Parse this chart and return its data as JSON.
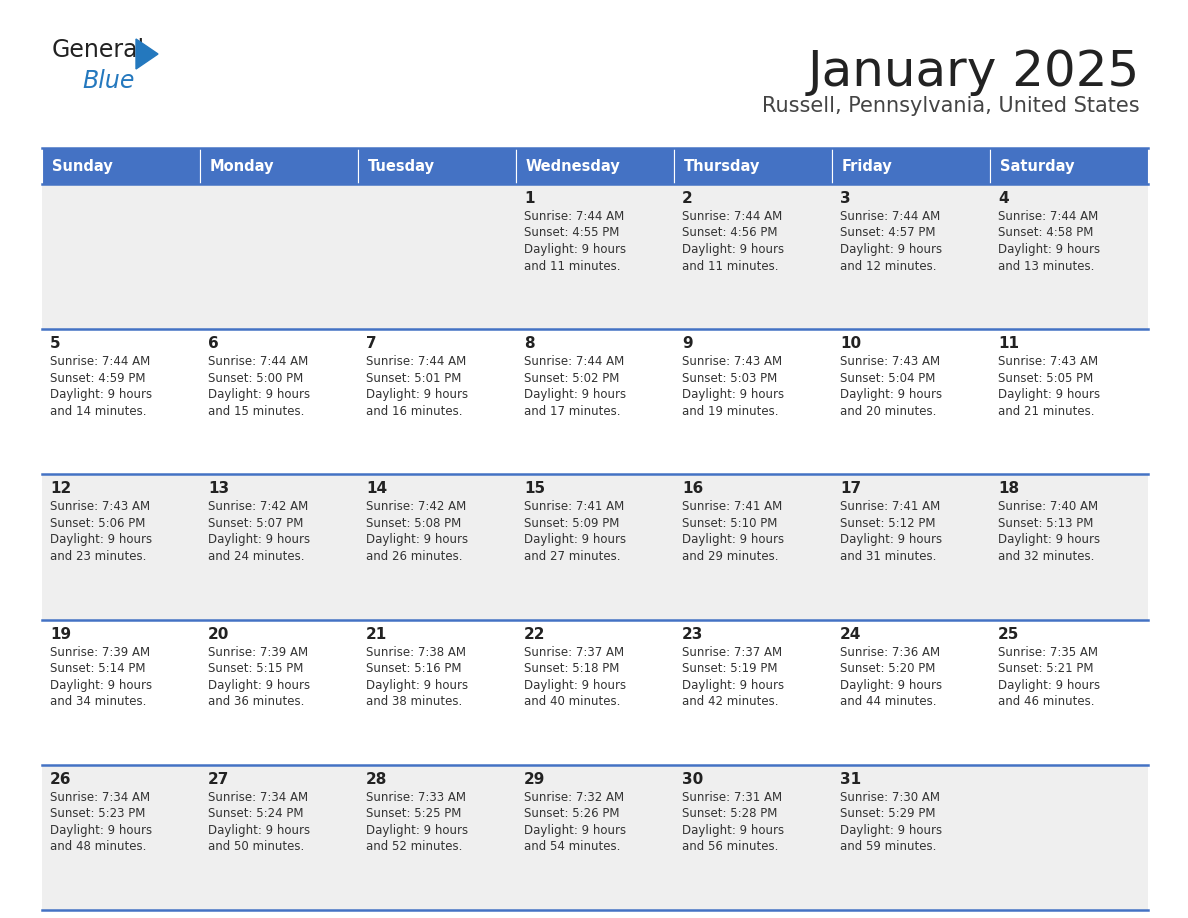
{
  "title": "January 2025",
  "subtitle": "Russell, Pennsylvania, United States",
  "header_bg": "#4472C4",
  "header_text_color": "#FFFFFF",
  "days_of_week": [
    "Sunday",
    "Monday",
    "Tuesday",
    "Wednesday",
    "Thursday",
    "Friday",
    "Saturday"
  ],
  "row_bg_odd": "#EFEFEF",
  "row_bg_even": "#FFFFFF",
  "text_color": "#333333",
  "border_color": "#4472C4",
  "logo_color_general": "#222222",
  "logo_color_blue": "#2478BE",
  "logo_triangle_color": "#2478BE",
  "calendar_data": [
    [
      {
        "day": null,
        "sunrise": null,
        "sunset": null,
        "daylight": null
      },
      {
        "day": null,
        "sunrise": null,
        "sunset": null,
        "daylight": null
      },
      {
        "day": null,
        "sunrise": null,
        "sunset": null,
        "daylight": null
      },
      {
        "day": 1,
        "sunrise": "7:44 AM",
        "sunset": "4:55 PM",
        "daylight": "9 hours and 11 minutes."
      },
      {
        "day": 2,
        "sunrise": "7:44 AM",
        "sunset": "4:56 PM",
        "daylight": "9 hours and 11 minutes."
      },
      {
        "day": 3,
        "sunrise": "7:44 AM",
        "sunset": "4:57 PM",
        "daylight": "9 hours and 12 minutes."
      },
      {
        "day": 4,
        "sunrise": "7:44 AM",
        "sunset": "4:58 PM",
        "daylight": "9 hours and 13 minutes."
      }
    ],
    [
      {
        "day": 5,
        "sunrise": "7:44 AM",
        "sunset": "4:59 PM",
        "daylight": "9 hours and 14 minutes."
      },
      {
        "day": 6,
        "sunrise": "7:44 AM",
        "sunset": "5:00 PM",
        "daylight": "9 hours and 15 minutes."
      },
      {
        "day": 7,
        "sunrise": "7:44 AM",
        "sunset": "5:01 PM",
        "daylight": "9 hours and 16 minutes."
      },
      {
        "day": 8,
        "sunrise": "7:44 AM",
        "sunset": "5:02 PM",
        "daylight": "9 hours and 17 minutes."
      },
      {
        "day": 9,
        "sunrise": "7:43 AM",
        "sunset": "5:03 PM",
        "daylight": "9 hours and 19 minutes."
      },
      {
        "day": 10,
        "sunrise": "7:43 AM",
        "sunset": "5:04 PM",
        "daylight": "9 hours and 20 minutes."
      },
      {
        "day": 11,
        "sunrise": "7:43 AM",
        "sunset": "5:05 PM",
        "daylight": "9 hours and 21 minutes."
      }
    ],
    [
      {
        "day": 12,
        "sunrise": "7:43 AM",
        "sunset": "5:06 PM",
        "daylight": "9 hours and 23 minutes."
      },
      {
        "day": 13,
        "sunrise": "7:42 AM",
        "sunset": "5:07 PM",
        "daylight": "9 hours and 24 minutes."
      },
      {
        "day": 14,
        "sunrise": "7:42 AM",
        "sunset": "5:08 PM",
        "daylight": "9 hours and 26 minutes."
      },
      {
        "day": 15,
        "sunrise": "7:41 AM",
        "sunset": "5:09 PM",
        "daylight": "9 hours and 27 minutes."
      },
      {
        "day": 16,
        "sunrise": "7:41 AM",
        "sunset": "5:10 PM",
        "daylight": "9 hours and 29 minutes."
      },
      {
        "day": 17,
        "sunrise": "7:41 AM",
        "sunset": "5:12 PM",
        "daylight": "9 hours and 31 minutes."
      },
      {
        "day": 18,
        "sunrise": "7:40 AM",
        "sunset": "5:13 PM",
        "daylight": "9 hours and 32 minutes."
      }
    ],
    [
      {
        "day": 19,
        "sunrise": "7:39 AM",
        "sunset": "5:14 PM",
        "daylight": "9 hours and 34 minutes."
      },
      {
        "day": 20,
        "sunrise": "7:39 AM",
        "sunset": "5:15 PM",
        "daylight": "9 hours and 36 minutes."
      },
      {
        "day": 21,
        "sunrise": "7:38 AM",
        "sunset": "5:16 PM",
        "daylight": "9 hours and 38 minutes."
      },
      {
        "day": 22,
        "sunrise": "7:37 AM",
        "sunset": "5:18 PM",
        "daylight": "9 hours and 40 minutes."
      },
      {
        "day": 23,
        "sunrise": "7:37 AM",
        "sunset": "5:19 PM",
        "daylight": "9 hours and 42 minutes."
      },
      {
        "day": 24,
        "sunrise": "7:36 AM",
        "sunset": "5:20 PM",
        "daylight": "9 hours and 44 minutes."
      },
      {
        "day": 25,
        "sunrise": "7:35 AM",
        "sunset": "5:21 PM",
        "daylight": "9 hours and 46 minutes."
      }
    ],
    [
      {
        "day": 26,
        "sunrise": "7:34 AM",
        "sunset": "5:23 PM",
        "daylight": "9 hours and 48 minutes."
      },
      {
        "day": 27,
        "sunrise": "7:34 AM",
        "sunset": "5:24 PM",
        "daylight": "9 hours and 50 minutes."
      },
      {
        "day": 28,
        "sunrise": "7:33 AM",
        "sunset": "5:25 PM",
        "daylight": "9 hours and 52 minutes."
      },
      {
        "day": 29,
        "sunrise": "7:32 AM",
        "sunset": "5:26 PM",
        "daylight": "9 hours and 54 minutes."
      },
      {
        "day": 30,
        "sunrise": "7:31 AM",
        "sunset": "5:28 PM",
        "daylight": "9 hours and 56 minutes."
      },
      {
        "day": 31,
        "sunrise": "7:30 AM",
        "sunset": "5:29 PM",
        "daylight": "9 hours and 59 minutes."
      },
      {
        "day": null,
        "sunrise": null,
        "sunset": null,
        "daylight": null
      }
    ]
  ]
}
